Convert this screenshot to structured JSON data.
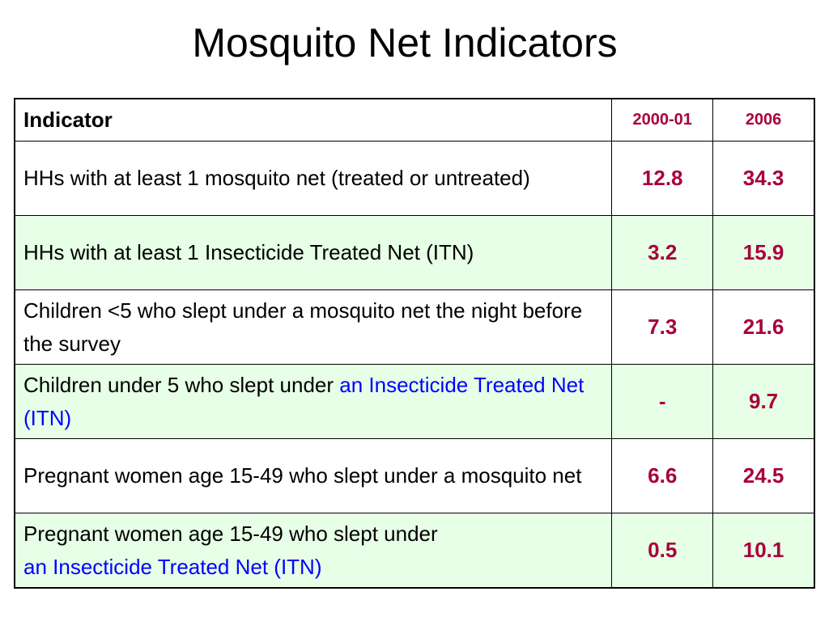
{
  "title": "Mosquito Net Indicators",
  "table": {
    "header": {
      "indicator": "Indicator",
      "year1": "2000-01",
      "year2": "2006"
    },
    "rows": [
      {
        "text": "HHs with at least 1 mosquito net (treated or untreated)",
        "v2000": "12.8",
        "v2006": "34.3"
      },
      {
        "text": "HHs with at least 1 Insecticide Treated Net (ITN)",
        "v2000": "3.2",
        "v2006": "15.9"
      },
      {
        "text": "Children <5 who slept under a mosquito net the night before the survey",
        "v2000": "7.3",
        "v2006": "21.6"
      },
      {
        "text": "Children under 5 who slept under ",
        "text_highlight": "an Insecticide Treated Net (ITN)",
        "v2000": "-",
        "v2006": "9.7"
      },
      {
        "text": "Pregnant women age 15-49  who slept under a mosquito net",
        "v2000": "6.6",
        "v2006": "24.5"
      },
      {
        "text": "Pregnant women age 15-49 who slept under ",
        "text_highlight": "an  Insecticide Treated Net (ITN)",
        "v2000": "0.5",
        "v2006": "10.1"
      }
    ]
  },
  "colors": {
    "value_text": "#a8003a",
    "highlight_text": "#0000ff",
    "shaded_row": "#e6ffe6"
  }
}
